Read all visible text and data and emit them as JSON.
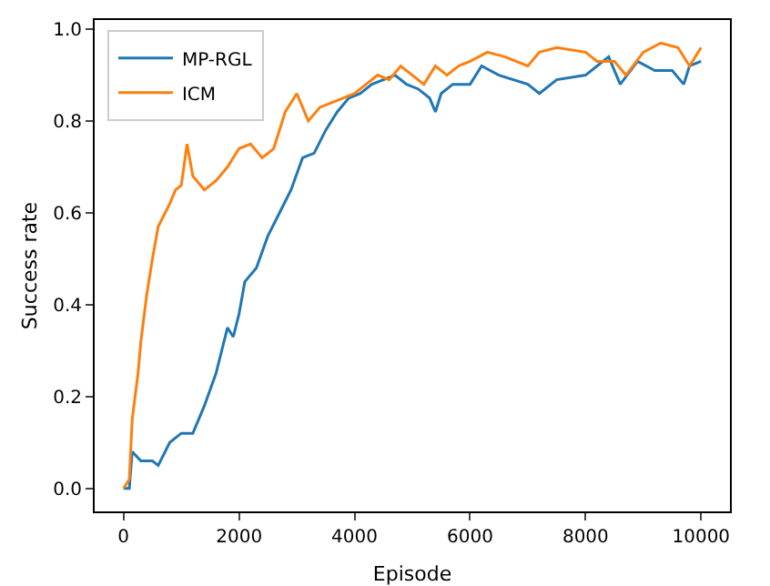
{
  "chart_data": {
    "type": "line",
    "xlabel": "Episode",
    "ylabel": "Success rate",
    "xlim": [
      -500,
      10500
    ],
    "ylim": [
      -0.05,
      1.02
    ],
    "xticks": [
      0,
      2000,
      4000,
      6000,
      8000,
      10000
    ],
    "yticks": [
      {
        "value": 0,
        "label": "0.0"
      },
      0.2,
      0.4,
      0.6,
      0.8,
      {
        "value": 1,
        "label": "1.0"
      }
    ],
    "legend": "top left",
    "grid": false,
    "line_style": "solid",
    "marker": "none",
    "series": [
      {
        "name": "MP-RGL",
        "color": "#1f77b4",
        "x": [
          0,
          100,
          150,
          300,
          500,
          600,
          800,
          1000,
          1200,
          1400,
          1600,
          1800,
          1900,
          2000,
          2100,
          2300,
          2500,
          2700,
          2900,
          3100,
          3300,
          3500,
          3700,
          3900,
          4100,
          4300,
          4500,
          4700,
          4900,
          5100,
          5300,
          5400,
          5500,
          5700,
          6000,
          6200,
          6500,
          7000,
          7200,
          7500,
          8000,
          8200,
          8400,
          8600,
          8900,
          9200,
          9500,
          9700,
          9800,
          10000
        ],
        "values": [
          0,
          0,
          0.08,
          0.06,
          0.06,
          0.05,
          0.1,
          0.12,
          0.12,
          0.18,
          0.25,
          0.35,
          0.33,
          0.38,
          0.45,
          0.48,
          0.55,
          0.6,
          0.65,
          0.72,
          0.73,
          0.78,
          0.82,
          0.85,
          0.86,
          0.88,
          0.89,
          0.9,
          0.88,
          0.87,
          0.85,
          0.82,
          0.86,
          0.88,
          0.88,
          0.92,
          0.9,
          0.88,
          0.86,
          0.89,
          0.9,
          0.92,
          0.94,
          0.88,
          0.93,
          0.91,
          0.91,
          0.88,
          0.92,
          0.93
        ]
      },
      {
        "name": "ICM",
        "color": "#ff7f0e",
        "x": [
          0,
          100,
          150,
          250,
          300,
          400,
          500,
          600,
          800,
          900,
          1000,
          1100,
          1200,
          1400,
          1600,
          1800,
          2000,
          2200,
          2400,
          2600,
          2800,
          3000,
          3100,
          3200,
          3400,
          3600,
          3800,
          4000,
          4200,
          4400,
          4600,
          4800,
          5000,
          5200,
          5400,
          5600,
          5800,
          6000,
          6300,
          6600,
          7000,
          7200,
          7500,
          8000,
          8200,
          8500,
          8700,
          9000,
          9300,
          9600,
          9800,
          10000
        ],
        "values": [
          0,
          0.02,
          0.15,
          0.25,
          0.32,
          0.42,
          0.5,
          0.57,
          0.62,
          0.65,
          0.66,
          0.75,
          0.68,
          0.65,
          0.67,
          0.7,
          0.74,
          0.75,
          0.72,
          0.74,
          0.82,
          0.86,
          0.83,
          0.8,
          0.83,
          0.84,
          0.85,
          0.86,
          0.88,
          0.9,
          0.89,
          0.92,
          0.9,
          0.88,
          0.92,
          0.9,
          0.92,
          0.93,
          0.95,
          0.94,
          0.92,
          0.95,
          0.96,
          0.95,
          0.93,
          0.93,
          0.9,
          0.95,
          0.97,
          0.96,
          0.92,
          0.96
        ]
      }
    ]
  }
}
